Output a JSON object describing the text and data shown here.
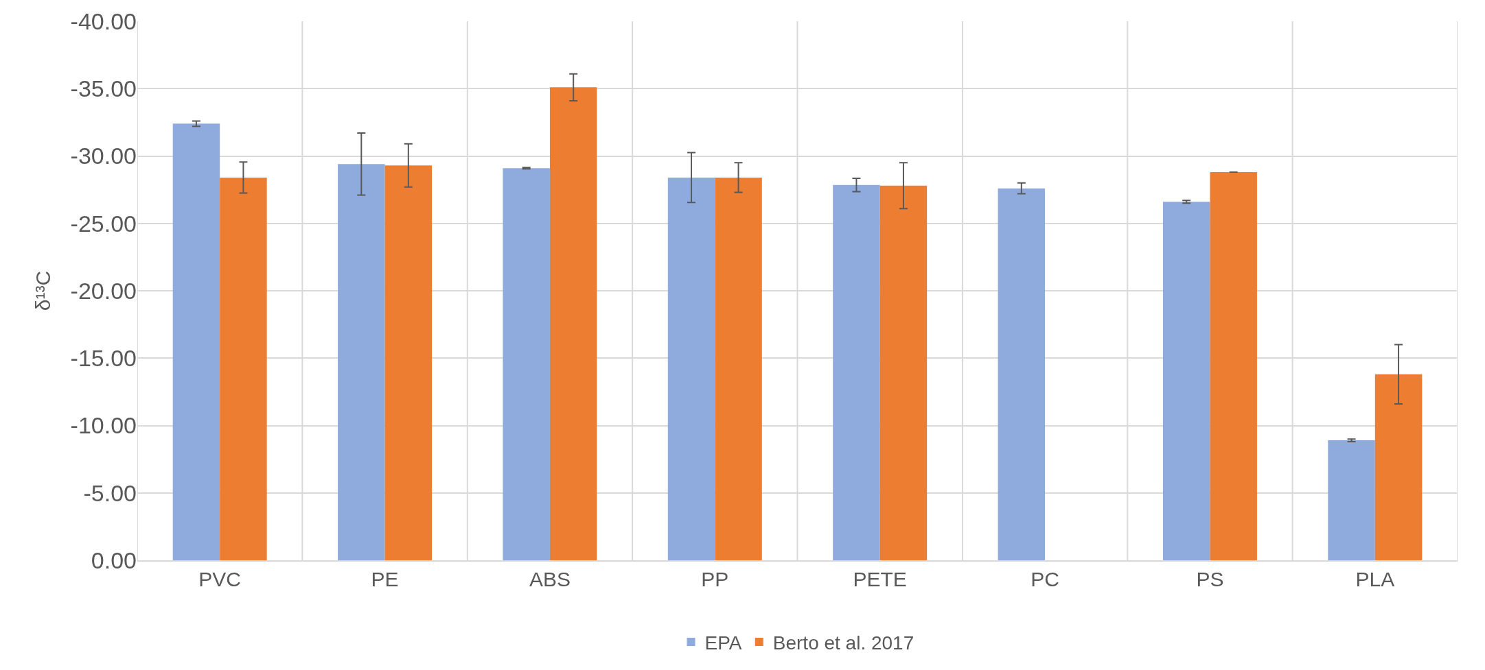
{
  "chart_data": {
    "type": "bar",
    "ylabel": "δ¹³C",
    "categories": [
      "PVC",
      "PE",
      "ABS",
      "PP",
      "PETE",
      "PC",
      "PS",
      "PLA"
    ],
    "series": [
      {
        "name": "EPA",
        "color": "#8faadc",
        "values": [
          -32.4,
          -29.4,
          -29.1,
          -28.4,
          -27.85,
          -27.6,
          -26.6,
          -8.9
        ],
        "errors": [
          0.2,
          2.3,
          0.05,
          1.85,
          0.5,
          0.4,
          0.1,
          0.1
        ]
      },
      {
        "name": "Berto et al. 2017",
        "color": "#ed7d31",
        "values": [
          -28.4,
          -29.3,
          -35.1,
          -28.4,
          -27.8,
          null,
          -28.8,
          -13.8
        ],
        "errors": [
          1.15,
          1.6,
          1.0,
          1.1,
          1.7,
          null,
          null,
          2.2
        ]
      }
    ],
    "ylim": [
      0,
      -40
    ],
    "yticks": [
      {
        "value": 0,
        "label": "0.00"
      },
      {
        "value": -5,
        "label": "-5.00"
      },
      {
        "value": -10,
        "label": "-10.00"
      },
      {
        "value": -15,
        "label": "-15.00"
      },
      {
        "value": -20,
        "label": "-20.00"
      },
      {
        "value": -25,
        "label": "-25.00"
      },
      {
        "value": -30,
        "label": "-30.00"
      },
      {
        "value": -35,
        "label": "-35.00"
      },
      {
        "value": -40,
        "label": "-40.00"
      }
    ],
    "grid": true,
    "legend": "bottom"
  }
}
